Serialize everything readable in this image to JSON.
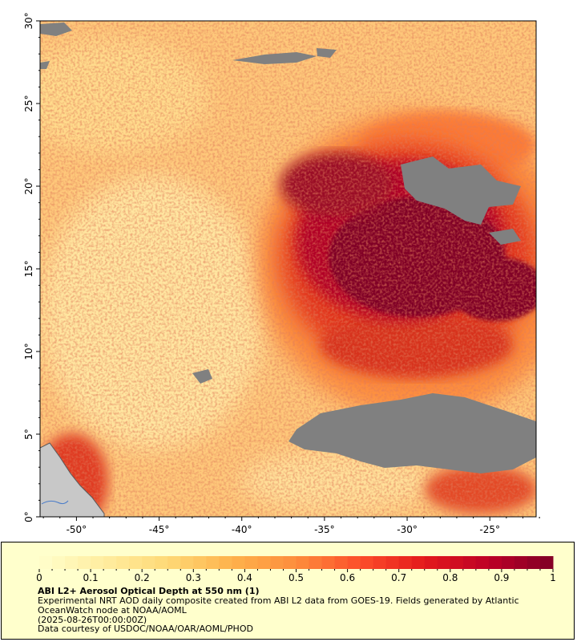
{
  "map": {
    "title": "ABI L2+ Aerosol Optical Depth at 550 nm (1)",
    "description_line1": "Experimental NRT AOD daily composite created from ABI L2 data from GOES-19. Fields generated by Atlantic",
    "description_line2": "OceanWatch node at NOAA/AOML",
    "timestamp": "(2025-08-26T00:00:00Z)",
    "credit": "Data courtesy of USDOC/NOAA/OAR/AOML/PHOD",
    "lon_ticks": [
      "-50°",
      "-45°",
      "-40°",
      "-35°",
      "-30°",
      "-25°"
    ],
    "lat_ticks": [
      "30°",
      "25°",
      "20°",
      "15°",
      "10°",
      "5°",
      "0°"
    ],
    "lon_values": [
      -50,
      -45,
      -40,
      -35,
      -30,
      -25
    ],
    "lat_values": [
      30,
      25,
      20,
      15,
      10,
      5,
      0
    ],
    "lon_range": [
      -52.2,
      -22.2
    ],
    "lat_range": [
      0,
      30
    ],
    "no_data_color": "#808080",
    "land_color": "#c8c8c8"
  },
  "colorbar": {
    "tick_labels": [
      "0",
      "0.1",
      "0.2",
      "0.3",
      "0.4",
      "0.5",
      "0.6",
      "0.7",
      "0.8",
      "0.9",
      "1"
    ],
    "range": [
      0,
      1
    ],
    "colors": [
      "#ffffcc",
      "#ffeda0",
      "#fed976",
      "#feb24c",
      "#fd8d3c",
      "#fc4e2a",
      "#e31a1c",
      "#bd0026",
      "#800026"
    ]
  }
}
